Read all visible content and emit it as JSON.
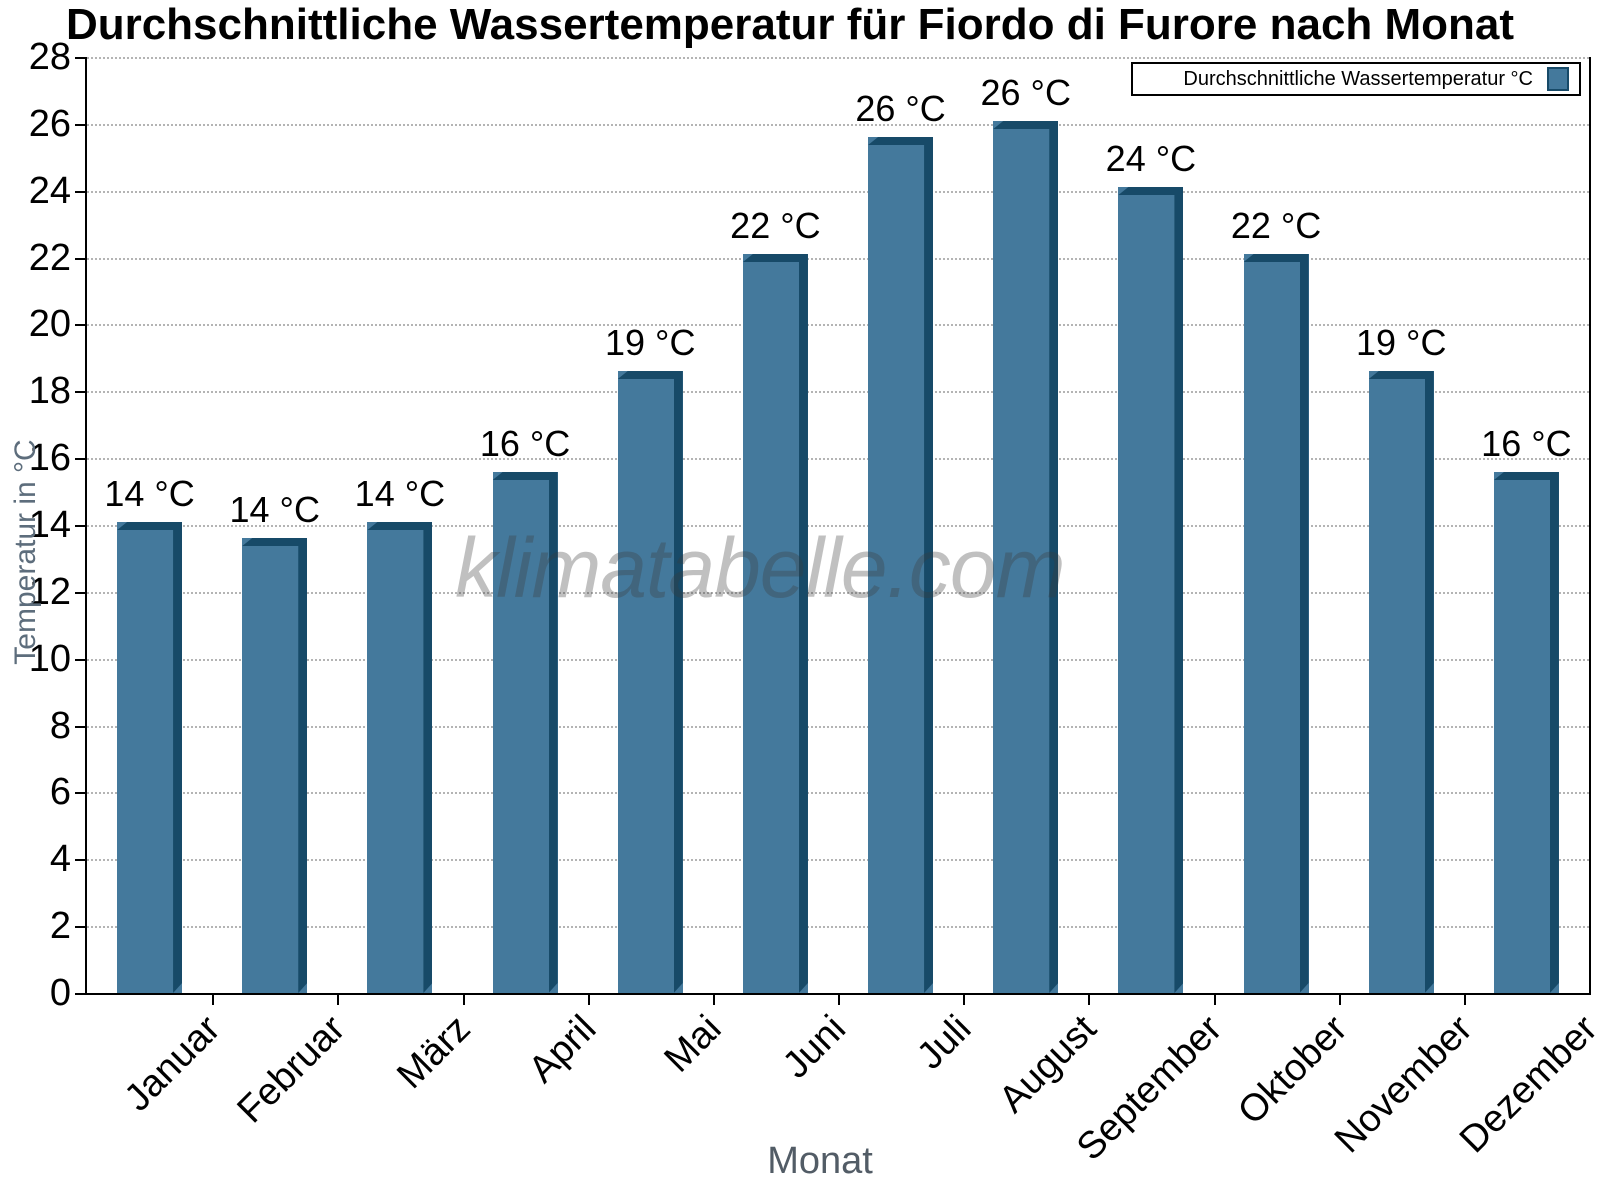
{
  "title": "Durchschnittliche Wassertemperatur für Fiordo di Furore nach Monat",
  "watermark": "klimatabelle.com",
  "legend": {
    "label": "Durchschnittliche Wassertemperatur °C",
    "position": "top-right"
  },
  "axes": {
    "y_label": "Temperatur in °C",
    "x_label": "Monat"
  },
  "colors": {
    "bar_face": "#44799C",
    "bar_dark": "#174A68",
    "grid": "#b4b4b4",
    "axis": "#000000",
    "axis_title_text": "#5d6d7c",
    "watermark_text": "#b9b9b9"
  },
  "chart_data": {
    "type": "bar",
    "title": "Durchschnittliche Wassertemperatur für Fiordo di Furore nach Monat",
    "categories": [
      "Januar",
      "Februar",
      "März",
      "April",
      "Mai",
      "Juni",
      "Juli",
      "August",
      "September",
      "Oktober",
      "November",
      "Dezember"
    ],
    "values": [
      14.1,
      13.6,
      14.1,
      15.6,
      18.6,
      22.1,
      25.6,
      26.1,
      24.1,
      22.1,
      18.6,
      15.6
    ],
    "bar_labels": [
      "14 °C",
      "14 °C",
      "14 °C",
      "16 °C",
      "19 °C",
      "22 °C",
      "26 °C",
      "26 °C",
      "24 °C",
      "22 °C",
      "19 °C",
      "16 °C"
    ],
    "series_name": "Durchschnittliche Wassertemperatur °C",
    "xlabel": "Monat",
    "ylabel": "Temperatur in °C",
    "ylim": [
      0,
      28
    ],
    "ytick_step": 2,
    "grid": "horizontal-dotted",
    "legend_position": "top-right",
    "x_labels_rotation_deg": -45
  }
}
